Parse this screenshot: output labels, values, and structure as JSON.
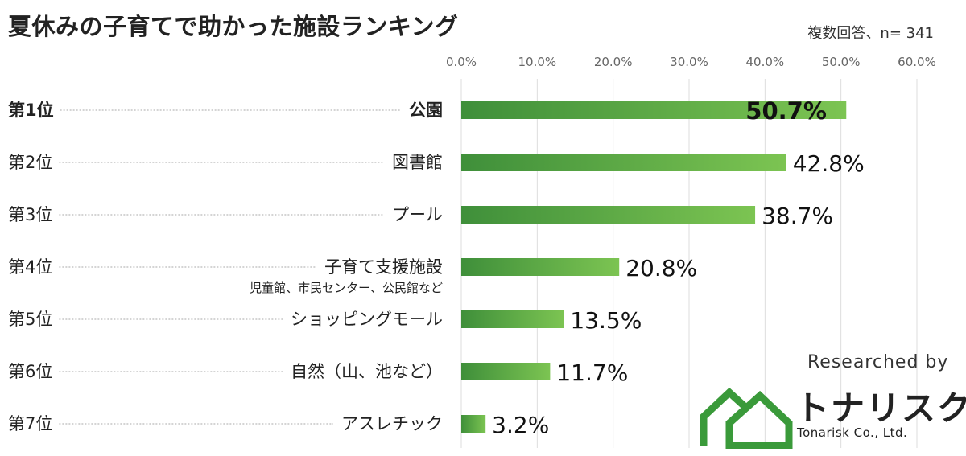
{
  "chart_data": {
    "type": "bar",
    "orientation": "horizontal",
    "title": "夏休みの子育てで助かった施設ランキング",
    "note": "複数回答、n= 341",
    "ranks": [
      "第1位",
      "第2位",
      "第3位",
      "第4位",
      "第5位",
      "第6位",
      "第7位"
    ],
    "categories": [
      "公園",
      "図書館",
      "プール",
      "子育て支援施設",
      "ショッピングモール",
      "自然（山、池など）",
      "アスレチック"
    ],
    "category_notes": [
      "",
      "",
      "",
      "児童館、市民センター、公民館など",
      "",
      "",
      ""
    ],
    "values": [
      50.7,
      42.8,
      38.7,
      20.8,
      13.5,
      11.7,
      3.2
    ],
    "value_labels": [
      "50.7%",
      "42.8%",
      "38.7%",
      "20.8%",
      "13.5%",
      "11.7%",
      "3.2%"
    ],
    "xlim": [
      0,
      60
    ],
    "xticks": [
      0,
      10,
      20,
      30,
      40,
      50,
      60
    ],
    "xtick_labels": [
      "0.0%",
      "10.0%",
      "20.0%",
      "30.0%",
      "40.0%",
      "50.0%",
      "60.0%"
    ],
    "grid": true,
    "bar_colors": [
      "#3f8f3a",
      "#7cc452"
    ]
  },
  "credit": {
    "label": "Researched by",
    "brand_ja": "トナリスク",
    "brand_en": "Tonarisk Co., Ltd."
  },
  "colors": {
    "logo_green": "#3a9a3a"
  }
}
